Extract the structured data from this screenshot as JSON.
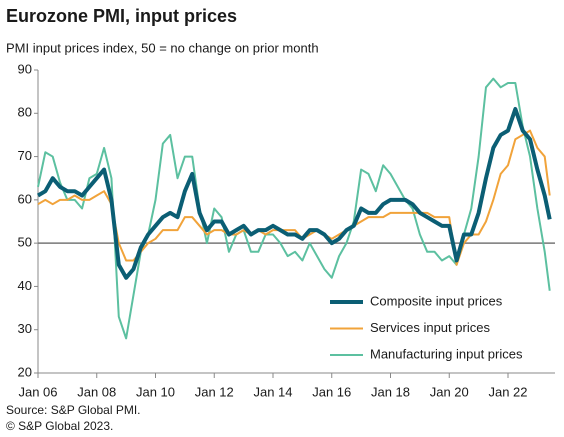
{
  "chart_data": {
    "type": "line",
    "title": "Eurozone PMI, input prices",
    "subtitle": "PMI input prices index, 50 = no change on prior month",
    "source": "Source: S&P Global PMI.",
    "copyright": "© S&P Global 2023.",
    "x": [
      2006,
      2006.25,
      2006.5,
      2006.75,
      2007,
      2007.25,
      2007.5,
      2007.75,
      2008,
      2008.25,
      2008.5,
      2008.75,
      2009,
      2009.25,
      2009.5,
      2009.75,
      2010,
      2010.25,
      2010.5,
      2010.75,
      2011,
      2011.25,
      2011.5,
      2011.75,
      2012,
      2012.25,
      2012.5,
      2012.75,
      2013,
      2013.25,
      2013.5,
      2013.75,
      2014,
      2014.25,
      2014.5,
      2014.75,
      2015,
      2015.25,
      2015.5,
      2015.75,
      2016,
      2016.25,
      2016.5,
      2016.75,
      2017,
      2017.25,
      2017.5,
      2017.75,
      2018,
      2018.25,
      2018.5,
      2018.75,
      2019,
      2019.25,
      2019.5,
      2019.75,
      2020,
      2020.25,
      2020.5,
      2020.75,
      2021,
      2021.25,
      2021.5,
      2021.75,
      2022,
      2022.25,
      2022.5,
      2022.75,
      2023,
      2023.25,
      2023.42
    ],
    "series": [
      {
        "name": "Composite input prices",
        "color": "#0b5e74",
        "width": 4,
        "values": [
          61,
          62,
          65,
          63,
          62,
          62,
          61,
          63,
          65,
          67,
          60,
          45,
          42,
          44,
          49,
          52,
          54,
          56,
          57,
          56,
          62,
          66,
          57,
          53,
          55,
          55,
          52,
          53,
          54,
          52,
          53,
          53,
          54,
          53,
          52,
          52,
          51,
          53,
          53,
          52,
          50,
          51,
          53,
          54,
          58,
          57,
          57,
          59,
          60,
          60,
          60,
          59,
          57,
          56,
          55,
          54,
          54,
          46,
          52,
          52,
          57,
          65,
          72,
          75,
          76,
          81,
          76,
          74,
          67,
          61,
          55.5
        ]
      },
      {
        "name": "Services input prices",
        "color": "#f1a33a",
        "width": 2,
        "values": [
          59,
          60,
          59,
          60,
          60,
          61,
          60,
          60,
          61,
          62,
          59,
          50,
          46,
          46,
          48,
          50,
          51,
          53,
          53,
          53,
          56,
          56,
          54,
          52,
          53,
          53,
          52,
          52,
          53,
          52,
          53,
          52,
          53,
          53,
          53,
          53,
          51,
          52,
          53,
          52,
          51,
          52,
          53,
          54,
          55,
          56,
          56,
          56,
          57,
          57,
          57,
          57,
          57,
          57,
          56,
          56,
          56,
          45,
          50,
          52,
          52,
          55,
          60,
          66,
          68,
          74,
          75,
          76,
          72,
          70,
          61
        ]
      },
      {
        "name": "Manufacturing input prices",
        "color": "#5cc0a0",
        "width": 2,
        "values": [
          63,
          71,
          70,
          64,
          60,
          60,
          58,
          65,
          66,
          72,
          65,
          33,
          28,
          38,
          48,
          52,
          60,
          73,
          75,
          65,
          70,
          70,
          58,
          50,
          58,
          56,
          48,
          52,
          53,
          48,
          48,
          52,
          52,
          50,
          47,
          48,
          46,
          50,
          47,
          44,
          42,
          47,
          50,
          55,
          67,
          66,
          62,
          68,
          66,
          63,
          60,
          58,
          52,
          48,
          48,
          46,
          47,
          45,
          52,
          58,
          70,
          86,
          88,
          86,
          87,
          87,
          77,
          70,
          58,
          48,
          39
        ]
      }
    ],
    "reference_line": 50,
    "xlim": [
      2006,
      2023.6
    ],
    "xticks": [
      {
        "value": 2006,
        "label": "Jan 06"
      },
      {
        "value": 2008,
        "label": "Jan 08"
      },
      {
        "value": 2010,
        "label": "Jan 10"
      },
      {
        "value": 2012,
        "label": "Jan 12"
      },
      {
        "value": 2014,
        "label": "Jan 14"
      },
      {
        "value": 2016,
        "label": "Jan 16"
      },
      {
        "value": 2018,
        "label": "Jan 18"
      },
      {
        "value": 2020,
        "label": "Jan 20"
      },
      {
        "value": 2022,
        "label": "Jan 22"
      }
    ],
    "ylim": [
      20,
      90
    ],
    "yticks": [
      20,
      30,
      40,
      50,
      60,
      70,
      80,
      90
    ],
    "legend": "lower right"
  }
}
